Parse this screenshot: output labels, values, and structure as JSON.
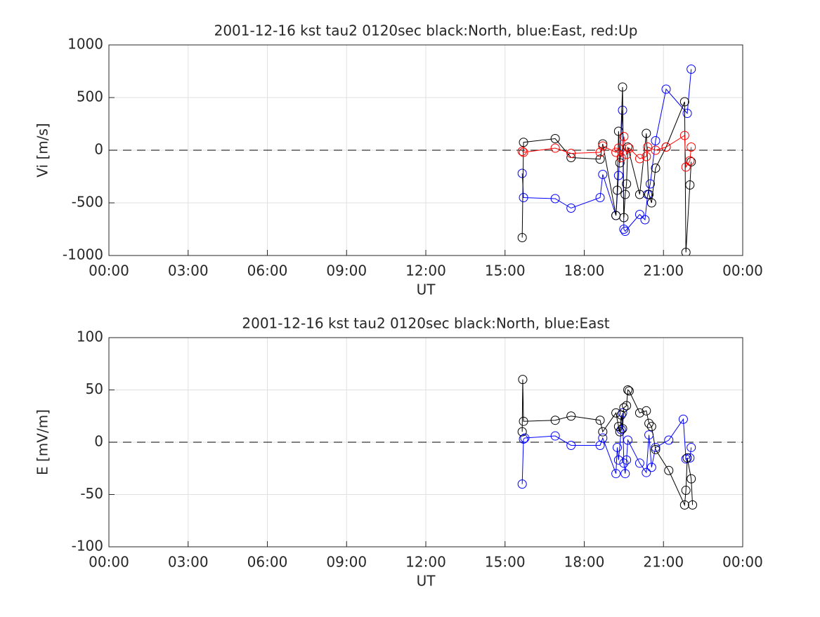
{
  "chart_data": [
    {
      "type": "line",
      "title": "2001-12-16 kst tau2 0120sec black:North, blue:East, red:Up",
      "xlabel": "UT",
      "ylabel": "Vi [m/s]",
      "grid": true,
      "xlim": [
        0,
        24
      ],
      "xticks": [
        {
          "value": 0,
          "label": "00:00"
        },
        {
          "value": 3,
          "label": "03:00"
        },
        {
          "value": 6,
          "label": "06:00"
        },
        {
          "value": 9,
          "label": "09:00"
        },
        {
          "value": 12,
          "label": "12:00"
        },
        {
          "value": 15,
          "label": "15:00"
        },
        {
          "value": 18,
          "label": "18:00"
        },
        {
          "value": 21,
          "label": "21:00"
        },
        {
          "value": 24,
          "label": "00:00"
        }
      ],
      "ylim": [
        -1000,
        1000
      ],
      "yticks": [
        -1000,
        -500,
        0,
        500,
        1000
      ],
      "series": [
        {
          "color": "#0000ff",
          "x": [
            15.65,
            15.7,
            16.9,
            17.5,
            18.6,
            18.7,
            19.2,
            19.3,
            19.45,
            19.5,
            19.55,
            20.1,
            20.3,
            20.4,
            20.5,
            20.7,
            21.1,
            21.9,
            22.05
          ],
          "values": [
            -220,
            -450,
            -460,
            -550,
            -450,
            -230,
            -620,
            -240,
            380,
            -750,
            -770,
            -610,
            -660,
            -420,
            -320,
            90,
            580,
            350,
            770
          ]
        },
        {
          "color": "#000000",
          "x": [
            15.65,
            15.7,
            16.9,
            17.5,
            18.6,
            18.7,
            19.2,
            19.25,
            19.3,
            19.35,
            19.45,
            19.5,
            19.55,
            19.6,
            19.65,
            20.1,
            20.35,
            20.45,
            20.55,
            20.7,
            21.1,
            21.8,
            21.85,
            22.0,
            22.05
          ],
          "values": [
            -830,
            75,
            110,
            -70,
            -85,
            60,
            -620,
            -380,
            180,
            -120,
            600,
            -640,
            -420,
            -320,
            30,
            -420,
            160,
            -420,
            -500,
            -170,
            30,
            460,
            -970,
            -330,
            -110
          ]
        },
        {
          "color": "#ff0000",
          "x": [
            15.65,
            15.7,
            16.9,
            17.5,
            18.6,
            18.7,
            19.2,
            19.3,
            19.4,
            19.5,
            19.6,
            19.7,
            20.1,
            20.35,
            20.4,
            20.7,
            21.1,
            21.8,
            21.85,
            22.0,
            22.05
          ],
          "values": [
            -10,
            -20,
            20,
            -30,
            -20,
            40,
            -20,
            20,
            -70,
            130,
            -40,
            20,
            -80,
            -60,
            30,
            0,
            30,
            140,
            -160,
            -100,
            30
          ]
        }
      ]
    },
    {
      "type": "line",
      "title": "2001-12-16 kst tau2 0120sec black:North, blue:East",
      "xlabel": "UT",
      "ylabel": "E [mV/m]",
      "grid": true,
      "xlim": [
        0,
        24
      ],
      "xticks": [
        {
          "value": 0,
          "label": "00:00"
        },
        {
          "value": 3,
          "label": "03:00"
        },
        {
          "value": 6,
          "label": "06:00"
        },
        {
          "value": 9,
          "label": "09:00"
        },
        {
          "value": 12,
          "label": "12:00"
        },
        {
          "value": 15,
          "label": "15:00"
        },
        {
          "value": 18,
          "label": "18:00"
        },
        {
          "value": 21,
          "label": "21:00"
        },
        {
          "value": 24,
          "label": "00:00"
        }
      ],
      "ylim": [
        -100,
        100
      ],
      "yticks": [
        -100,
        -50,
        0,
        50,
        100
      ],
      "series": [
        {
          "color": "#0000ff",
          "x": [
            15.65,
            15.7,
            15.75,
            16.9,
            17.5,
            18.6,
            18.7,
            19.2,
            19.25,
            19.3,
            19.4,
            19.45,
            19.5,
            19.55,
            19.6,
            19.65,
            20.1,
            20.35,
            20.45,
            20.55,
            20.7,
            21.2,
            21.75,
            21.85,
            22.0,
            22.05
          ],
          "values": [
            -40,
            3,
            4,
            6,
            -3,
            -3,
            4,
            -30,
            -5,
            -17,
            12,
            28,
            -20,
            -30,
            -17,
            2,
            -20,
            -29,
            7,
            -24,
            -5,
            2,
            22,
            -16,
            -15,
            -5
          ]
        },
        {
          "color": "#000000",
          "x": [
            15.65,
            15.67,
            15.7,
            16.9,
            17.5,
            18.6,
            18.7,
            19.2,
            19.3,
            19.35,
            19.4,
            19.45,
            19.5,
            19.6,
            19.65,
            19.7,
            20.1,
            20.35,
            20.45,
            20.55,
            20.7,
            21.2,
            21.8,
            21.85,
            21.9,
            22.05,
            22.1
          ],
          "values": [
            10,
            60,
            20,
            21,
            25,
            21,
            10,
            28,
            15,
            10,
            26,
            13,
            33,
            35,
            50,
            49,
            28,
            30,
            18,
            15,
            -7,
            -27,
            -60,
            -46,
            -15,
            -35,
            -60
          ]
        }
      ]
    }
  ]
}
